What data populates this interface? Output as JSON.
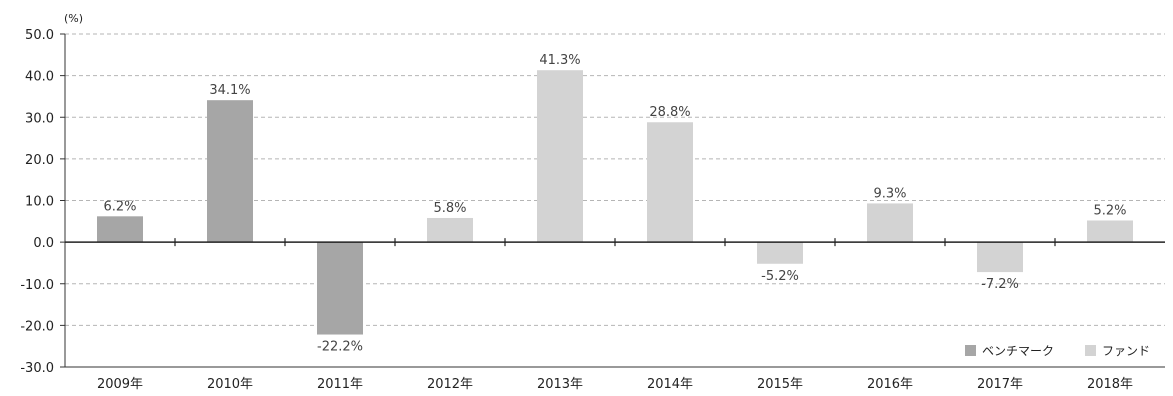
{
  "chart_data": {
    "type": "bar",
    "unit_label": "(%)",
    "categories": [
      "2009年",
      "2010年",
      "2011年",
      "2012年",
      "2013年",
      "2014年",
      "2015年",
      "2016年",
      "2017年",
      "2018年"
    ],
    "values": [
      6.2,
      34.1,
      -22.2,
      5.8,
      41.3,
      28.8,
      -5.2,
      9.3,
      -7.2,
      5.2
    ],
    "value_labels": [
      "6.2%",
      "34.1%",
      "-22.2%",
      "5.8%",
      "41.3%",
      "28.8%",
      "-5.2%",
      "9.3%",
      "-7.2%",
      "5.2%"
    ],
    "series_assignment": [
      "benchmark",
      "benchmark",
      "benchmark",
      "fund",
      "fund",
      "fund",
      "fund",
      "fund",
      "fund",
      "fund"
    ],
    "series": [
      {
        "key": "benchmark",
        "name": "ベンチマーク",
        "color": "#a6a6a6"
      },
      {
        "key": "fund",
        "name": "ファンド",
        "color": "#d3d3d3"
      }
    ],
    "ylim": [
      -30,
      50
    ],
    "yticks": [
      50,
      40,
      30,
      20,
      10,
      0,
      -10,
      -20,
      -30
    ],
    "ytick_labels": [
      "50.0",
      "40.0",
      "30.0",
      "20.0",
      "10.0",
      "0.0",
      "-10.0",
      "-20.0",
      "-30.0"
    ],
    "grid": true,
    "legend_position": "bottom-right"
  }
}
